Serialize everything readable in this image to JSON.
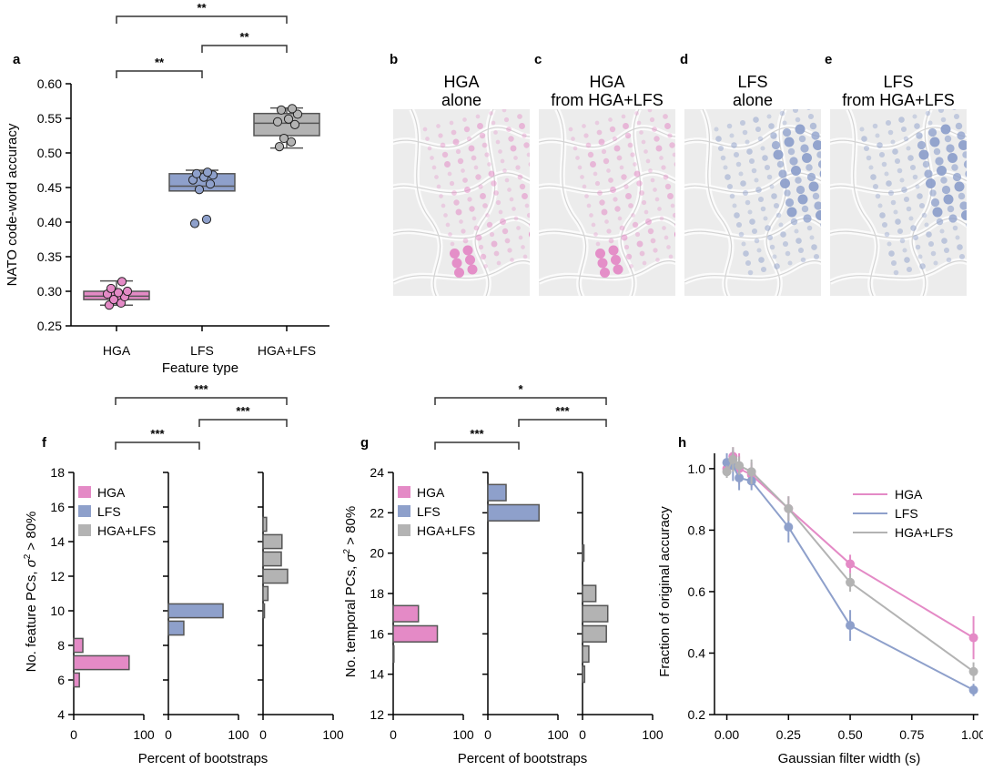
{
  "colors": {
    "hga": "#e48ac6",
    "lfs": "#8ea0cb",
    "both": "#b3b3b3",
    "edge": "#555555",
    "brain": "#e9e9e9"
  },
  "panel_labels": [
    "a",
    "b",
    "c",
    "d",
    "e",
    "f",
    "g",
    "h"
  ],
  "brains": [
    {
      "key": "b",
      "line1": "HGA",
      "line2": "alone",
      "color": "hga"
    },
    {
      "key": "c",
      "line1": "HGA",
      "line2": "from HGA+LFS",
      "color": "hga"
    },
    {
      "key": "d",
      "line1": "LFS",
      "line2": "alone",
      "color": "lfs"
    },
    {
      "key": "e",
      "line1": "LFS",
      "line2": "from HGA+LFS",
      "color": "lfs"
    }
  ],
  "chart_data": [
    {
      "id": "a",
      "type": "box",
      "ylabel": "NATO code-word accuracy",
      "xlabel": "Feature type",
      "categories": [
        "HGA",
        "LFS",
        "HGA+LFS"
      ],
      "ylim": [
        0.25,
        0.6
      ],
      "yticks": [
        "0.25",
        "0.30",
        "0.35",
        "0.40",
        "0.45",
        "0.50",
        "0.55",
        "0.60"
      ],
      "boxes": [
        {
          "q1": 0.288,
          "median": 0.293,
          "q3": 0.3,
          "wlo": 0.28,
          "whi": 0.315
        },
        {
          "q1": 0.445,
          "median": 0.452,
          "q3": 0.47,
          "wlo": 0.445,
          "whi": 0.475
        },
        {
          "q1": 0.525,
          "median": 0.543,
          "q3": 0.557,
          "wlo": 0.507,
          "whi": 0.565
        }
      ],
      "points": [
        [
          0.28,
          0.283,
          0.288,
          0.292,
          0.296,
          0.298,
          0.3,
          0.304,
          0.314
        ],
        [
          0.398,
          0.404,
          0.447,
          0.455,
          0.461,
          0.465,
          0.468,
          0.47,
          0.472
        ],
        [
          0.509,
          0.516,
          0.521,
          0.541,
          0.545,
          0.549,
          0.556,
          0.562,
          0.564
        ]
      ],
      "significance": [
        {
          "from": 0,
          "to": 1,
          "label": "**"
        },
        {
          "from": 1,
          "to": 2,
          "label": "**"
        },
        {
          "from": 0,
          "to": 2,
          "label": "**"
        }
      ]
    },
    {
      "id": "f",
      "type": "bar",
      "ylabel_pre": "No. feature PCs, ",
      "ylabel_sym": "σ",
      "ylabel_exp": "2",
      "ylabel_post": " > 80%",
      "xlabel": "Percent of bootstraps",
      "ylim": [
        4,
        18
      ],
      "yticks": [
        "4",
        "6",
        "8",
        "10",
        "12",
        "14",
        "16",
        "18"
      ],
      "xticks": [
        "0",
        "100"
      ],
      "legend": [
        "HGA",
        "LFS",
        "HGA+LFS"
      ],
      "series": [
        {
          "name": "HGA",
          "bins": [
            6,
            7,
            8
          ],
          "values": [
            8,
            79,
            13
          ]
        },
        {
          "name": "LFS",
          "bins": [
            9,
            10
          ],
          "values": [
            22,
            78
          ]
        },
        {
          "name": "HGA+LFS",
          "bins": [
            10,
            11,
            12,
            13,
            14,
            15
          ],
          "values": [
            2,
            7,
            35,
            26,
            27,
            5
          ]
        }
      ],
      "significance": [
        {
          "from": 0,
          "to": 1,
          "label": "***"
        },
        {
          "from": 1,
          "to": 2,
          "label": "***"
        },
        {
          "from": 0,
          "to": 2,
          "label": "***"
        }
      ]
    },
    {
      "id": "g",
      "type": "bar",
      "ylabel_pre": "No. temporal PCs, ",
      "ylabel_sym": "σ",
      "ylabel_exp": "2",
      "ylabel_post": " > 80%",
      "xlabel": "Percent of bootstraps",
      "ylim": [
        12,
        24
      ],
      "yticks": [
        "12",
        "14",
        "16",
        "18",
        "20",
        "22",
        "24"
      ],
      "xticks": [
        "0",
        "100"
      ],
      "legend": [
        "HGA",
        "LFS",
        "HGA+LFS"
      ],
      "series": [
        {
          "name": "HGA",
          "bins": [
            15,
            16,
            17
          ],
          "values": [
            1,
            63,
            36
          ]
        },
        {
          "name": "LFS",
          "bins": [
            22,
            23
          ],
          "values": [
            73,
            26
          ]
        },
        {
          "name": "HGA+LFS",
          "bins": [
            14,
            15,
            16,
            17,
            18,
            20
          ],
          "values": [
            3,
            9,
            34,
            36,
            19,
            2
          ]
        }
      ],
      "significance": [
        {
          "from": 0,
          "to": 1,
          "label": "***"
        },
        {
          "from": 1,
          "to": 2,
          "label": "***"
        },
        {
          "from": 0,
          "to": 2,
          "label": "*"
        }
      ]
    },
    {
      "id": "h",
      "type": "line",
      "ylabel": "Fraction of original accuracy",
      "xlabel": "Gaussian filter width (s)",
      "xlim": [
        -0.05,
        1.02
      ],
      "ylim": [
        0.2,
        1.05
      ],
      "xticks": [
        "0.00",
        "0.25",
        "0.50",
        "0.75",
        "1.00"
      ],
      "yticks": [
        "0.2",
        "0.4",
        "0.6",
        "0.8",
        "1.0"
      ],
      "x": [
        0,
        0.025,
        0.05,
        0.1,
        0.25,
        0.5,
        1.0
      ],
      "series": [
        {
          "name": "HGA",
          "color": "hga",
          "values": [
            1.0,
            1.04,
            1.0,
            0.98,
            0.87,
            0.69,
            0.45
          ],
          "err": [
            0.02,
            0.03,
            0.05,
            0.04,
            0.04,
            0.03,
            0.07
          ]
        },
        {
          "name": "LFS",
          "color": "lfs",
          "values": [
            1.02,
            1.01,
            0.97,
            0.96,
            0.81,
            0.49,
            0.28
          ],
          "err": [
            0.03,
            0.05,
            0.04,
            0.03,
            0.05,
            0.05,
            0.02
          ]
        },
        {
          "name": "HGA+LFS",
          "color": "both",
          "values": [
            0.99,
            1.03,
            1.01,
            0.99,
            0.87,
            0.63,
            0.34
          ],
          "err": [
            0.02,
            0.04,
            0.03,
            0.04,
            0.04,
            0.03,
            0.03
          ]
        }
      ]
    }
  ]
}
